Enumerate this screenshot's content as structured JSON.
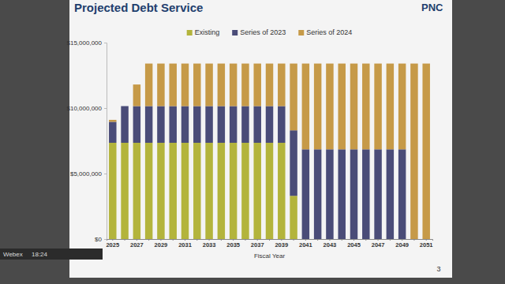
{
  "chart_data": {
    "type": "bar",
    "stacked": true,
    "grid": false,
    "legend": "top",
    "title": "Projected Debt Service",
    "x_label": "Fiscal Year",
    "annotations": [
      "PNC",
      "3",
      "Webex",
      "18:24"
    ],
    "categories": [
      "2025",
      null,
      "2027",
      null,
      "2029",
      null,
      "2031",
      null,
      "2033",
      null,
      "2035",
      null,
      "2037",
      null,
      "2039",
      null,
      "2041",
      null,
      "2043",
      null,
      "2045",
      null,
      "2047",
      null,
      "2049",
      null,
      "2051"
    ],
    "series": [
      {
        "name": "Existing",
        "color": "#b3b43c",
        "values": [
          7350000,
          7350000,
          7350000,
          7350000,
          7350000,
          7350000,
          7350000,
          7350000,
          7350000,
          7350000,
          7350000,
          7350000,
          7350000,
          7350000,
          7350000,
          3300000,
          0,
          0,
          0,
          0,
          0,
          0,
          0,
          0,
          0,
          0,
          0
        ]
      },
      {
        "name": "Series of 2023",
        "color": "#4a4c78",
        "values": [
          1600000,
          2800000,
          2800000,
          2800000,
          2800000,
          2800000,
          2800000,
          2800000,
          2800000,
          2800000,
          2800000,
          2800000,
          2800000,
          2800000,
          2800000,
          5000000,
          6850000,
          6850000,
          6850000,
          6850000,
          6850000,
          6850000,
          6850000,
          6850000,
          6850000,
          0,
          0
        ]
      },
      {
        "name": "Series of 2024",
        "color": "#c69a48",
        "values": [
          150000,
          0,
          1650000,
          3250000,
          3250000,
          3250000,
          3250000,
          3250000,
          3250000,
          3250000,
          3250000,
          3250000,
          3250000,
          3250000,
          3250000,
          5100000,
          6550000,
          6550000,
          6550000,
          6550000,
          6550000,
          6550000,
          6550000,
          6550000,
          6550000,
          13400000,
          13400000
        ]
      }
    ],
    "ylim": [
      0,
      15000000
    ],
    "yticks": [
      {
        "value": 0,
        "label": "$0"
      },
      {
        "value": 5000000,
        "label": "$5,000,000"
      },
      {
        "value": 10000000,
        "label": "$10,000,000"
      },
      {
        "value": 15000000,
        "label": "$15,000,000"
      }
    ]
  }
}
